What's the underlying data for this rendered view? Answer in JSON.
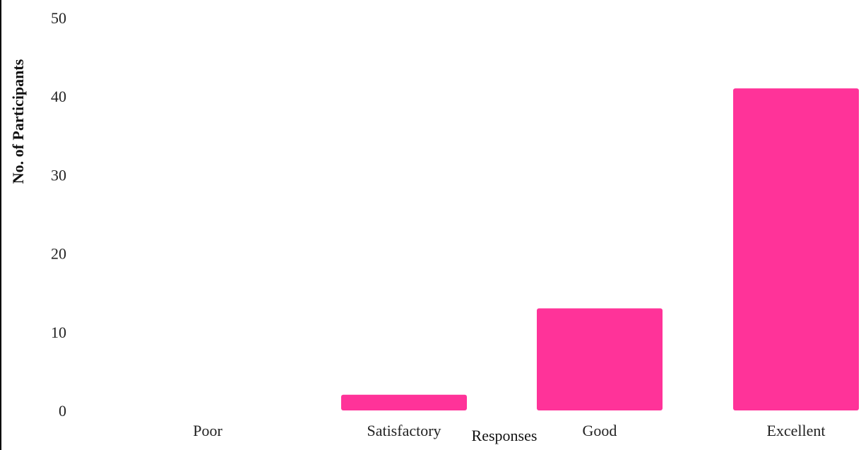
{
  "chart_data": {
    "type": "bar",
    "title": "",
    "xlabel": "Responses",
    "ylabel": "No. of Participants",
    "categories": [
      "Poor",
      "Satisfactory",
      "Good",
      "Excellent"
    ],
    "values": [
      0,
      2,
      13,
      41
    ],
    "ylim": [
      0,
      50
    ],
    "yticks": [
      "0",
      "10",
      "20",
      "30",
      "40",
      "50"
    ],
    "grid": false,
    "legend": "none",
    "bar_color": "#ff3399"
  }
}
